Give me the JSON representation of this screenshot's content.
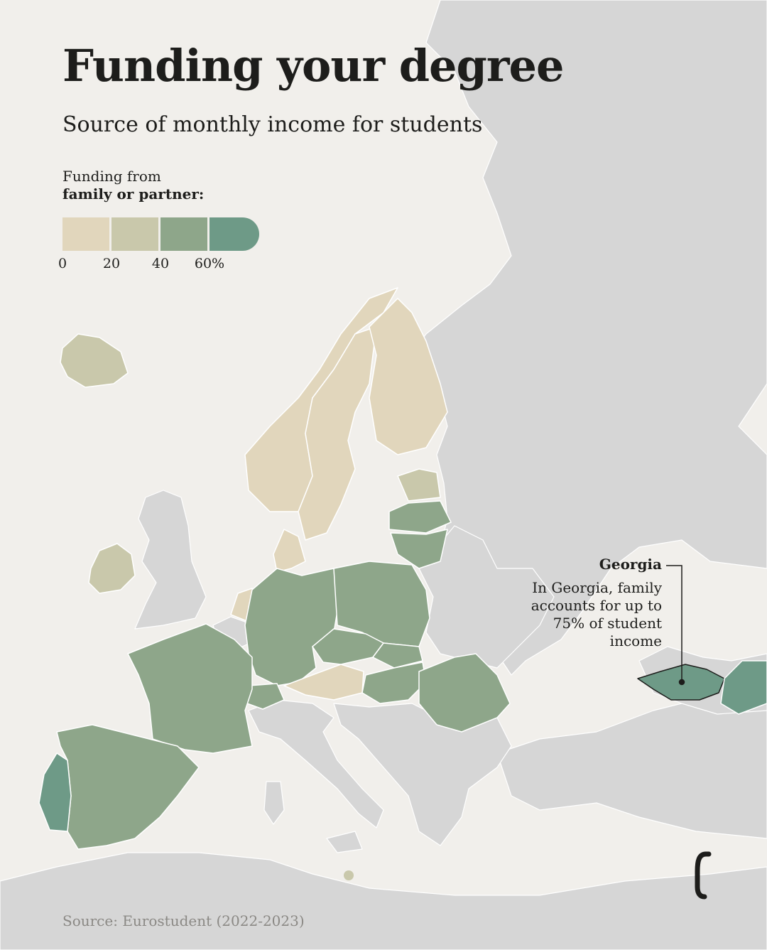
{
  "title": "Funding your degree",
  "subtitle": "Source of monthly income for students",
  "legend": {
    "title_line1": "Funding from",
    "title_line2": "family or partner:",
    "ticks": [
      "0",
      "20",
      "40",
      "60%"
    ],
    "colors": [
      "#e1d6bc",
      "#c9c8ab",
      "#8ea68a",
      "#6e9a87"
    ]
  },
  "map_colors": {
    "background_sea": "#f1efeb",
    "no_data_land": "#d6d6d6",
    "border": "#ffffff"
  },
  "regions": [
    {
      "name": "Iceland",
      "bin": 1
    },
    {
      "name": "Norway",
      "bin": 0
    },
    {
      "name": "Sweden",
      "bin": 0
    },
    {
      "name": "Finland",
      "bin": 0
    },
    {
      "name": "Denmark",
      "bin": 0
    },
    {
      "name": "Estonia",
      "bin": 1
    },
    {
      "name": "Latvia",
      "bin": 2
    },
    {
      "name": "Lithuania",
      "bin": 2
    },
    {
      "name": "Ireland",
      "bin": 1
    },
    {
      "name": "Netherlands",
      "bin": 0
    },
    {
      "name": "Germany",
      "bin": 2
    },
    {
      "name": "Poland",
      "bin": 2
    },
    {
      "name": "Czechia",
      "bin": 2
    },
    {
      "name": "Slovakia",
      "bin": 2
    },
    {
      "name": "Hungary",
      "bin": 2
    },
    {
      "name": "Austria",
      "bin": 0
    },
    {
      "name": "Switzerland",
      "bin": 2
    },
    {
      "name": "France",
      "bin": 2
    },
    {
      "name": "Spain",
      "bin": 2
    },
    {
      "name": "Portugal",
      "bin": 3
    },
    {
      "name": "Romania",
      "bin": 2
    },
    {
      "name": "Georgia",
      "bin": 3
    },
    {
      "name": "Azerbaijan",
      "bin": 3
    },
    {
      "name": "Malta",
      "bin": 1
    }
  ],
  "annotation": {
    "country": "Georgia",
    "text": "In Georgia, family accounts for up to 75% of student income"
  },
  "source": "Source: Eurostudent (2022-2023)"
}
